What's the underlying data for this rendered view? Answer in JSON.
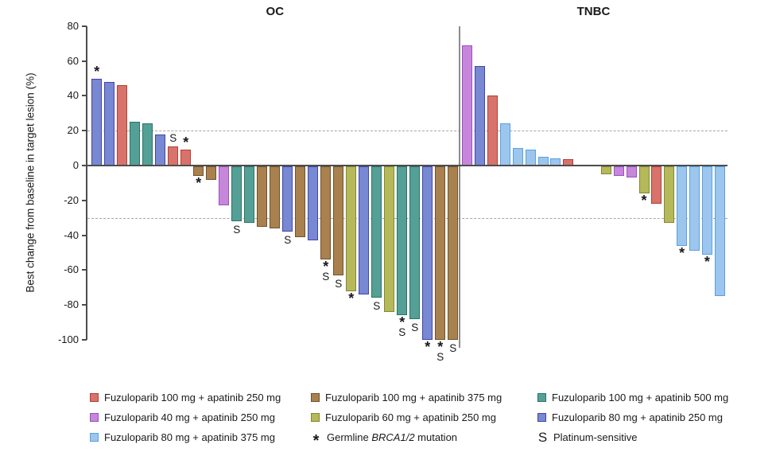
{
  "chart_data": {
    "type": "bar",
    "subtype": "waterfall",
    "ylabel": "Best change from baseline in target lesion (%)",
    "ylim": [
      -100,
      80
    ],
    "yticks": [
      80,
      60,
      40,
      20,
      0,
      -20,
      -40,
      -60,
      -80,
      -100
    ],
    "reference_lines": [
      20,
      -30
    ],
    "grid": false,
    "legend_position": "bottom",
    "marker_meanings": {
      "*": "Germline BRCA1/2 mutation",
      "S": "Platinum-sensitive"
    },
    "panels": [
      {
        "name": "OC",
        "bars": [
          {
            "v": 50,
            "g": "f80a250",
            "m": "*"
          },
          {
            "v": 48,
            "g": "f80a250"
          },
          {
            "v": 46,
            "g": "f100a250"
          },
          {
            "v": 25,
            "g": "f100a500"
          },
          {
            "v": 24,
            "g": "f100a500"
          },
          {
            "v": 18,
            "g": "f80a250"
          },
          {
            "v": 11,
            "g": "f100a250",
            "m": "S"
          },
          {
            "v": 9,
            "g": "f100a250",
            "m": "*"
          },
          {
            "v": -6,
            "g": "f100a375",
            "m": "*"
          },
          {
            "v": -8,
            "g": "f100a375"
          },
          {
            "v": -23,
            "g": "f40a250"
          },
          {
            "v": -32,
            "g": "f100a500",
            "m": "S"
          },
          {
            "v": -33,
            "g": "f100a500"
          },
          {
            "v": -35,
            "g": "f100a375"
          },
          {
            "v": -36,
            "g": "f100a375"
          },
          {
            "v": -38,
            "g": "f80a250",
            "m": "S"
          },
          {
            "v": -41,
            "g": "f100a375"
          },
          {
            "v": -43,
            "g": "f80a250"
          },
          {
            "v": -54,
            "g": "f100a375",
            "m": "*S"
          },
          {
            "v": -63,
            "g": "f100a375",
            "m": "S"
          },
          {
            "v": -72,
            "g": "f60a250",
            "m": "*"
          },
          {
            "v": -74,
            "g": "f80a250"
          },
          {
            "v": -76,
            "g": "f100a500",
            "m": "S"
          },
          {
            "v": -84,
            "g": "f60a250"
          },
          {
            "v": -86,
            "g": "f100a500",
            "m": "*S"
          },
          {
            "v": -88,
            "g": "f100a500",
            "m": "S"
          },
          {
            "v": -100,
            "g": "f80a250",
            "m": "*"
          },
          {
            "v": -100,
            "g": "f100a375",
            "m": "*S"
          },
          {
            "v": -100,
            "g": "f100a375",
            "m": "S"
          }
        ]
      },
      {
        "name": "TNBC",
        "bars": [
          {
            "v": 69,
            "g": "f40a250"
          },
          {
            "v": 57,
            "g": "f80a250"
          },
          {
            "v": 40,
            "g": "f100a250"
          },
          {
            "v": 24,
            "g": "f80a375"
          },
          {
            "v": 10,
            "g": "f80a375"
          },
          {
            "v": 9,
            "g": "f80a375"
          },
          {
            "v": 5,
            "g": "f80a375"
          },
          {
            "v": 4,
            "g": "f80a375"
          },
          {
            "v": 3.5,
            "g": "f100a250"
          },
          {
            "v": 0,
            "g": ""
          },
          {
            "v": 0,
            "g": ""
          },
          {
            "v": -5,
            "g": "f60a250"
          },
          {
            "v": -6,
            "g": "f40a250"
          },
          {
            "v": -7,
            "g": "f40a250"
          },
          {
            "v": -16,
            "g": "f60a250",
            "m": "*"
          },
          {
            "v": -22,
            "g": "f100a250"
          },
          {
            "v": -33,
            "g": "f60a250"
          },
          {
            "v": -46,
            "g": "f80a375",
            "m": "*"
          },
          {
            "v": -49,
            "g": "f80a375"
          },
          {
            "v": -51,
            "g": "f80a375",
            "m": "*"
          },
          {
            "v": -75,
            "g": "f80a375"
          }
        ]
      }
    ]
  },
  "colors": {
    "f100a250": {
      "fill": "#D8736B",
      "stroke": "#B13F35"
    },
    "f100a375": {
      "fill": "#A9814F",
      "stroke": "#70522A"
    },
    "f100a500": {
      "fill": "#54A096",
      "stroke": "#2D7265"
    },
    "f40a250": {
      "fill": "#C687DB",
      "stroke": "#9A4FC0"
    },
    "f60a250": {
      "fill": "#B5B95A",
      "stroke": "#82882F"
    },
    "f80a250": {
      "fill": "#7888D2",
      "stroke": "#4046A8"
    },
    "f80a375": {
      "fill": "#9CC6EE",
      "stroke": "#5CA0DC"
    },
    "axis": "#4d4d4d",
    "reference_dash": "#a6a6a6"
  },
  "legend": {
    "items": [
      {
        "type": "swatch",
        "group": "f100a250",
        "label": "Fuzuloparib 100 mg + apatinib 250 mg"
      },
      {
        "type": "swatch",
        "group": "f100a375",
        "label": "Fuzuloparib 100 mg + apatinib 375 mg"
      },
      {
        "type": "swatch",
        "group": "f100a500",
        "label": "Fuzuloparib 100 mg + apatinib 500 mg"
      },
      {
        "type": "swatch",
        "group": "f40a250",
        "label": "Fuzuloparib 40 mg + apatinib 250 mg"
      },
      {
        "type": "swatch",
        "group": "f60a250",
        "label": "Fuzuloparib 60 mg + apatinib 250 mg"
      },
      {
        "type": "swatch",
        "group": "f80a250",
        "label": "Fuzuloparib 80 mg + apatinib 250 mg"
      },
      {
        "type": "swatch",
        "group": "f80a375",
        "label": "Fuzuloparib 80 mg + apatinib 375 mg"
      },
      {
        "type": "symbol",
        "symbol": "*",
        "label_parts": [
          "Germline ",
          "BRCA1/2",
          " mutation"
        ],
        "italic_part": 1
      },
      {
        "type": "symbol",
        "symbol": "S",
        "label": "Platinum-sensitive"
      }
    ]
  }
}
